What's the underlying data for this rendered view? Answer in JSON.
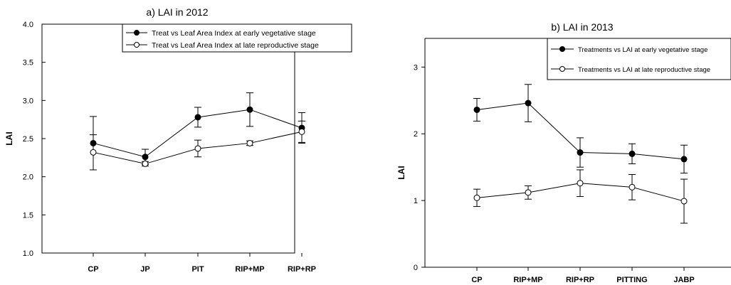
{
  "chart_data": [
    {
      "type": "line",
      "title": "a) LAI in 2012",
      "ylabel": "LAI",
      "ylim": [
        1.0,
        4.0
      ],
      "yticks": [
        "1.0",
        "1.5",
        "2.0",
        "2.5",
        "3.0",
        "3.5",
        "4.0"
      ],
      "categories": [
        "CP",
        "JP",
        "PIT",
        "RIP+MP",
        "RIP+RP"
      ],
      "legend_position": "top-right",
      "grid": false,
      "series": [
        {
          "name": "Treat vs Leaf Area Index at early vegetative stage",
          "marker": "filled-circle",
          "values": [
            2.44,
            2.26,
            2.78,
            2.88,
            2.64
          ],
          "errors": [
            0.35,
            0.1,
            0.13,
            0.22,
            0.2
          ]
        },
        {
          "name": "Treat vs Leaf Area Index at late reproductive stage",
          "marker": "open-circle",
          "values": [
            2.32,
            2.17,
            2.37,
            2.44,
            2.59
          ],
          "errors": [
            0.23,
            0.03,
            0.11,
            0.03,
            0.14
          ]
        }
      ]
    },
    {
      "type": "line",
      "title": "b) LAI in 2013",
      "ylabel": "LAI",
      "ylim": [
        0,
        3.43
      ],
      "yticks": [
        "0",
        "1",
        "2",
        "3"
      ],
      "categories": [
        "CP",
        "RIP+MP",
        "RIP+RP",
        "PITTING",
        "JABP"
      ],
      "legend_position": "top-right",
      "grid": false,
      "series": [
        {
          "name": "Treatments vs LAI at early vegetative stage",
          "marker": "filled-circle",
          "values": [
            2.36,
            2.46,
            1.72,
            1.7,
            1.62
          ],
          "errors": [
            0.17,
            0.28,
            0.22,
            0.15,
            0.21
          ]
        },
        {
          "name": "Treatments vs LAI at late reproductive stage",
          "marker": "open-circle",
          "values": [
            1.04,
            1.12,
            1.26,
            1.2,
            0.99
          ],
          "errors": [
            0.13,
            0.1,
            0.2,
            0.19,
            0.33
          ]
        }
      ]
    }
  ]
}
